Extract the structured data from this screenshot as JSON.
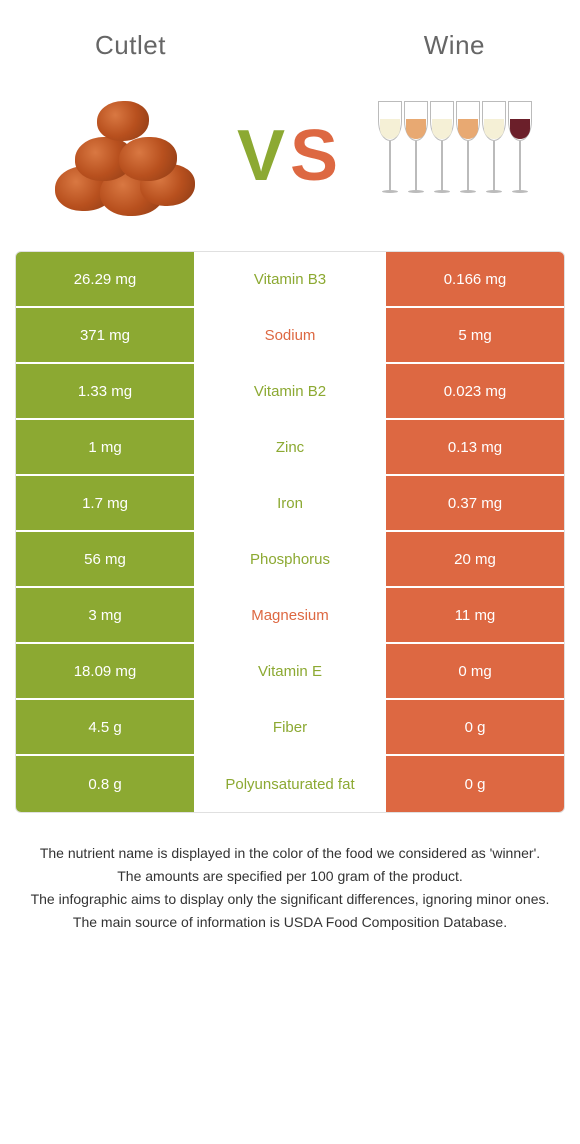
{
  "header": {
    "food1": "Cutlet",
    "food2": "Wine"
  },
  "vs": {
    "text": "VS",
    "color1": "#8ca932",
    "color2": "#dd6842"
  },
  "colors": {
    "green": "#8ca932",
    "orange": "#dd6842",
    "green_text": "#8ca932",
    "orange_text": "#dd6842"
  },
  "wine_glasses": [
    {
      "color": "#f5f0d6"
    },
    {
      "color": "#e8a972"
    },
    {
      "color": "#f5f0d6"
    },
    {
      "color": "#e8a972"
    },
    {
      "color": "#f5f0d6"
    },
    {
      "color": "#6b1f2a"
    }
  ],
  "rows": [
    {
      "left": "26.29 mg",
      "label": "Vitamin B3",
      "right": "0.166 mg",
      "winner": "green"
    },
    {
      "left": "371 mg",
      "label": "Sodium",
      "right": "5 mg",
      "winner": "orange"
    },
    {
      "left": "1.33 mg",
      "label": "Vitamin B2",
      "right": "0.023 mg",
      "winner": "green"
    },
    {
      "left": "1 mg",
      "label": "Zinc",
      "right": "0.13 mg",
      "winner": "green"
    },
    {
      "left": "1.7 mg",
      "label": "Iron",
      "right": "0.37 mg",
      "winner": "green"
    },
    {
      "left": "56 mg",
      "label": "Phosphorus",
      "right": "20 mg",
      "winner": "green"
    },
    {
      "left": "3 mg",
      "label": "Magnesium",
      "right": "11 mg",
      "winner": "orange"
    },
    {
      "left": "18.09 mg",
      "label": "Vitamin E",
      "right": "0 mg",
      "winner": "green"
    },
    {
      "left": "4.5 g",
      "label": "Fiber",
      "right": "0 g",
      "winner": "green"
    },
    {
      "left": "0.8 g",
      "label": "Polyunsaturated fat",
      "right": "0 g",
      "winner": "green"
    }
  ],
  "footnotes": [
    "The nutrient name is displayed in the color of the food we considered as 'winner'.",
    "The amounts are specified per 100 gram of the product.",
    "The infographic aims to display only the significant differences, ignoring minor ones.",
    "The main source of information is USDA Food Composition Database."
  ]
}
